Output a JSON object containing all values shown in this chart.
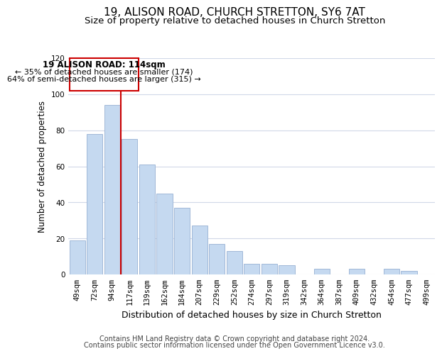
{
  "title": "19, ALISON ROAD, CHURCH STRETTON, SY6 7AT",
  "subtitle": "Size of property relative to detached houses in Church Stretton",
  "xlabel": "Distribution of detached houses by size in Church Stretton",
  "ylabel": "Number of detached properties",
  "bar_color": "#c5d9f0",
  "bar_edge_color": "#a0b8d8",
  "background_color": "#ffffff",
  "grid_color": "#d0d8e8",
  "categories": [
    "49sqm",
    "72sqm",
    "94sqm",
    "117sqm",
    "139sqm",
    "162sqm",
    "184sqm",
    "207sqm",
    "229sqm",
    "252sqm",
    "274sqm",
    "297sqm",
    "319sqm",
    "342sqm",
    "364sqm",
    "387sqm",
    "409sqm",
    "432sqm",
    "454sqm",
    "477sqm",
    "499sqm"
  ],
  "values": [
    19,
    78,
    94,
    75,
    61,
    45,
    37,
    27,
    17,
    13,
    6,
    6,
    5,
    0,
    3,
    0,
    3,
    0,
    3,
    2,
    0
  ],
  "ylim": [
    0,
    120
  ],
  "yticks": [
    0,
    20,
    40,
    60,
    80,
    100,
    120
  ],
  "vline_x_idx": 2.5,
  "vline_color": "#cc0000",
  "annotation_title": "19 ALISON ROAD: 114sqm",
  "annotation_line1": "← 35% of detached houses are smaller (174)",
  "annotation_line2": "64% of semi-detached houses are larger (315) →",
  "annotation_box_edge": "#cc0000",
  "footer_line1": "Contains HM Land Registry data © Crown copyright and database right 2024.",
  "footer_line2": "Contains public sector information licensed under the Open Government Licence v3.0.",
  "title_fontsize": 11,
  "subtitle_fontsize": 9.5,
  "xlabel_fontsize": 9,
  "ylabel_fontsize": 8.5,
  "tick_fontsize": 7.5,
  "annotation_fontsize_title": 8.5,
  "annotation_fontsize_body": 8,
  "footer_fontsize": 7
}
